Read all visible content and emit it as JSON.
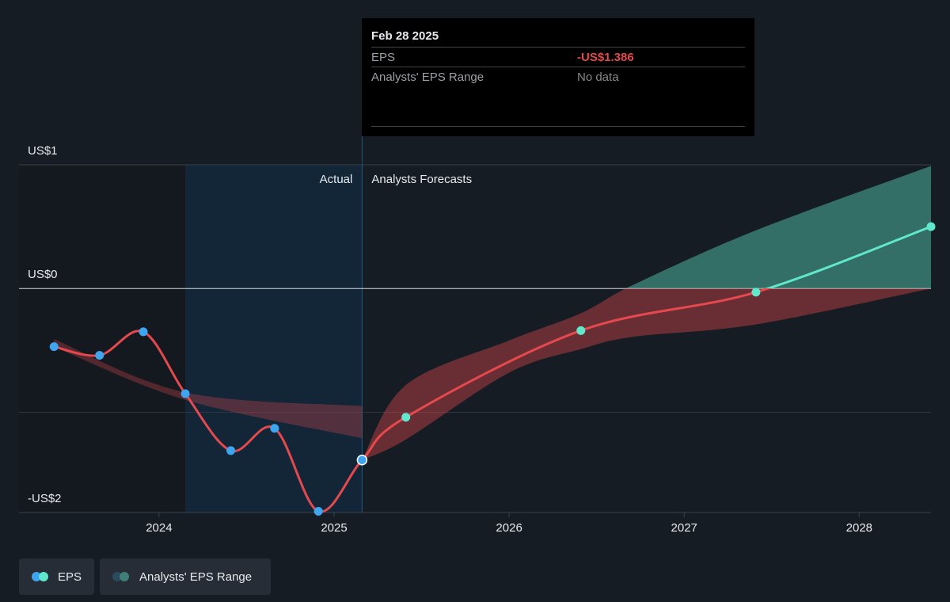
{
  "tooltip": {
    "date": "Feb 28 2025",
    "rows": [
      {
        "label": "EPS",
        "value": -1.386,
        "value_label": "-US$1.386"
      },
      {
        "label": "Analysts' EPS Range",
        "value": "No data"
      }
    ]
  },
  "chart_data": {
    "type": "line",
    "region_labels": {
      "actual": "Actual",
      "forecast": "Analysts Forecasts"
    },
    "highlight_start": 2024.15,
    "split": 2025.16,
    "series": [
      {
        "name": "EPS",
        "color": "#e5484d",
        "color_positive": "#5fe8cc",
        "marker_color": "#3ea6f0",
        "forecast_marker_color": "#5fe8cc",
        "x": [
          2023.4,
          2023.66,
          2023.91,
          2024.15,
          2024.41,
          2024.66,
          2024.91,
          2025.16,
          2025.41,
          2026.41,
          2027.41,
          2028.41
        ],
        "values": [
          -0.47,
          -0.54,
          -0.35,
          -0.85,
          -1.31,
          -1.13,
          -1.8,
          -1.386,
          -1.04,
          -0.34,
          -0.03,
          0.5
        ]
      }
    ],
    "range": {
      "name": "Analysts' EPS Range",
      "color": "#e5484d",
      "color_positive": "#5fe8cc",
      "pieces": [
        {
          "x": [
            2023.4,
            2024.15,
            2025.16
          ],
          "low": [
            -0.47,
            -0.9,
            -1.21
          ],
          "high": [
            -0.41,
            -0.84,
            -0.95
          ]
        },
        {
          "x": [
            2025.16,
            2025.41,
            2026.0,
            2026.41,
            2026.71,
            2027.41,
            2028.41
          ],
          "low": [
            -1.386,
            -1.22,
            -0.68,
            -0.49,
            -0.39,
            -0.29,
            0.0
          ],
          "high": [
            -1.386,
            -0.78,
            -0.42,
            -0.2,
            0.03,
            0.47,
            0.99
          ]
        }
      ]
    },
    "xlim": [
      2023.2,
      2028.41
    ],
    "xticks": [
      2024,
      2025,
      2026,
      2027,
      2028
    ],
    "ylim": [
      -1.81,
      1.0
    ],
    "yticks": [
      {
        "value": 1,
        "label": "US$1"
      },
      {
        "value": 0,
        "label": "US$0"
      },
      {
        "value": -1.81,
        "label": "-US$2"
      }
    ],
    "minor_grid": [
      -1
    ]
  }
}
